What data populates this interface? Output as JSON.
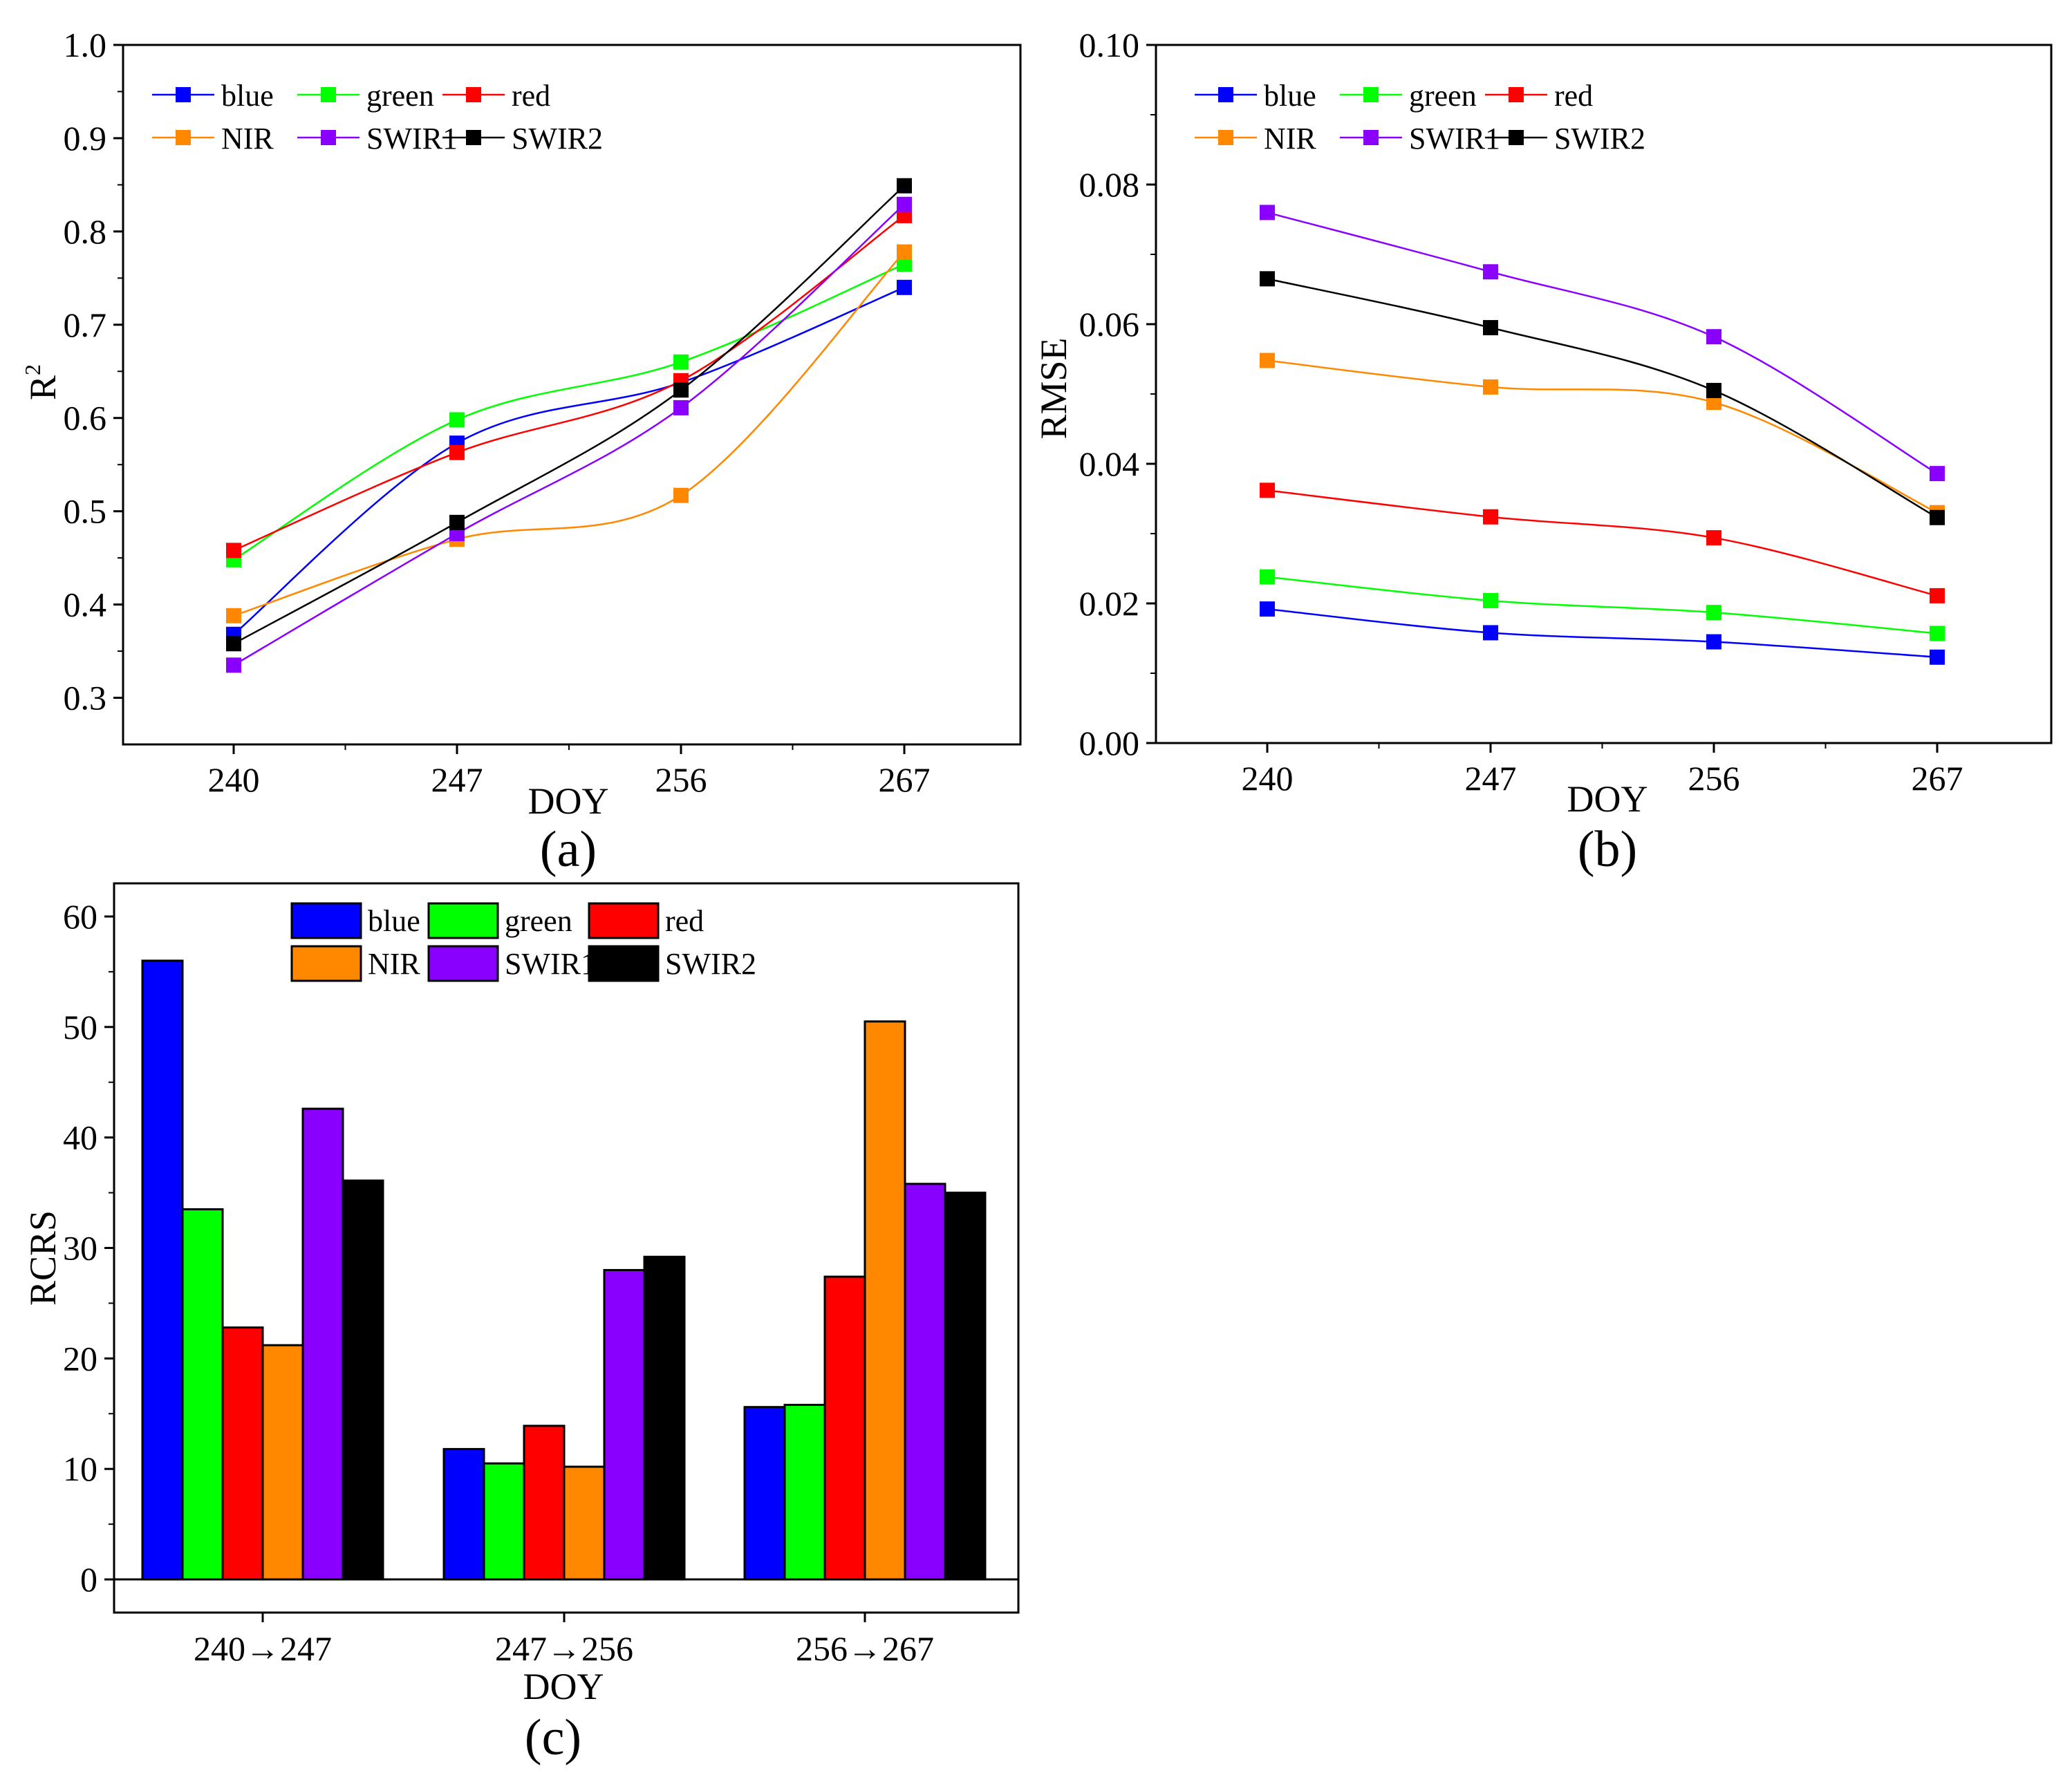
{
  "chart_data": [
    {
      "panel": "a",
      "type": "line",
      "caption": "(a)",
      "xlabel": "DOY",
      "ylabel": "R",
      "ylabel_sup": "2",
      "x": [
        240,
        247,
        256,
        267
      ],
      "x_tick_labels": [
        "240",
        "247",
        "256",
        "267"
      ],
      "ylim": [
        0.25,
        1.0
      ],
      "y_ticks": [
        0.3,
        0.4,
        0.5,
        0.6,
        0.7,
        0.8,
        0.9,
        1.0
      ],
      "y_tick_labels": [
        "0.3",
        "0.4",
        "0.5",
        "0.6",
        "0.7",
        "0.8",
        "0.9",
        "1.0"
      ],
      "series": [
        {
          "name": "blue",
          "color": "#0000ff",
          "values": [
            0.368,
            0.573,
            0.638,
            0.74
          ]
        },
        {
          "name": "green",
          "color": "#00ff00",
          "values": [
            0.448,
            0.598,
            0.66,
            0.765
          ]
        },
        {
          "name": "red",
          "color": "#ff0000",
          "values": [
            0.458,
            0.563,
            0.64,
            0.817
          ]
        },
        {
          "name": "NIR",
          "color": "#ff8800",
          "values": [
            0.388,
            0.47,
            0.517,
            0.778
          ]
        },
        {
          "name": "SWIR1",
          "color": "#8a00ff",
          "values": [
            0.335,
            0.476,
            0.611,
            0.829
          ]
        },
        {
          "name": "SWIR2",
          "color": "#000000",
          "values": [
            0.358,
            0.488,
            0.63,
            0.849
          ]
        }
      ]
    },
    {
      "panel": "b",
      "type": "line",
      "caption": "(b)",
      "xlabel": "DOY",
      "ylabel": "RMSE",
      "x": [
        240,
        247,
        256,
        267
      ],
      "x_tick_labels": [
        "240",
        "247",
        "256",
        "267"
      ],
      "ylim": [
        0.0,
        0.1
      ],
      "y_ticks": [
        0.0,
        0.02,
        0.04,
        0.06,
        0.08,
        0.1
      ],
      "y_tick_labels": [
        "0.00",
        "0.02",
        "0.04",
        "0.06",
        "0.08",
        "0.10"
      ],
      "series": [
        {
          "name": "blue",
          "color": "#0000ff",
          "values": [
            0.0192,
            0.0158,
            0.0145,
            0.0123
          ]
        },
        {
          "name": "green",
          "color": "#00ff00",
          "values": [
            0.0238,
            0.0204,
            0.0187,
            0.0157
          ]
        },
        {
          "name": "red",
          "color": "#ff0000",
          "values": [
            0.0362,
            0.0324,
            0.0294,
            0.0211
          ]
        },
        {
          "name": "NIR",
          "color": "#ff8800",
          "values": [
            0.0548,
            0.051,
            0.0488,
            0.033
          ]
        },
        {
          "name": "SWIR1",
          "color": "#8a00ff",
          "values": [
            0.076,
            0.0675,
            0.0582,
            0.0386
          ]
        },
        {
          "name": "SWIR2",
          "color": "#000000",
          "values": [
            0.0665,
            0.0595,
            0.0505,
            0.0323
          ]
        }
      ]
    },
    {
      "panel": "c",
      "type": "bar",
      "caption": "(c)",
      "xlabel": "DOY",
      "ylabel": "RCRS",
      "categories": [
        "240→247",
        "247→256",
        "256→267"
      ],
      "ylim": [
        -3,
        63
      ],
      "y_ticks": [
        0,
        10,
        20,
        30,
        40,
        50,
        60
      ],
      "y_tick_labels": [
        "0",
        "10",
        "20",
        "30",
        "40",
        "50",
        "60"
      ],
      "series": [
        {
          "name": "blue",
          "color": "#0000ff",
          "values": [
            56.0,
            11.8,
            15.6
          ]
        },
        {
          "name": "green",
          "color": "#00ff00",
          "values": [
            33.5,
            10.5,
            15.8
          ]
        },
        {
          "name": "red",
          "color": "#ff0000",
          "values": [
            22.8,
            13.9,
            27.4
          ]
        },
        {
          "name": "NIR",
          "color": "#ff8800",
          "values": [
            21.2,
            10.2,
            50.5
          ]
        },
        {
          "name": "SWIR1",
          "color": "#8a00ff",
          "values": [
            42.6,
            28.0,
            35.8
          ]
        },
        {
          "name": "SWIR2",
          "color": "#000000",
          "values": [
            36.1,
            29.2,
            35.0
          ]
        }
      ]
    }
  ]
}
